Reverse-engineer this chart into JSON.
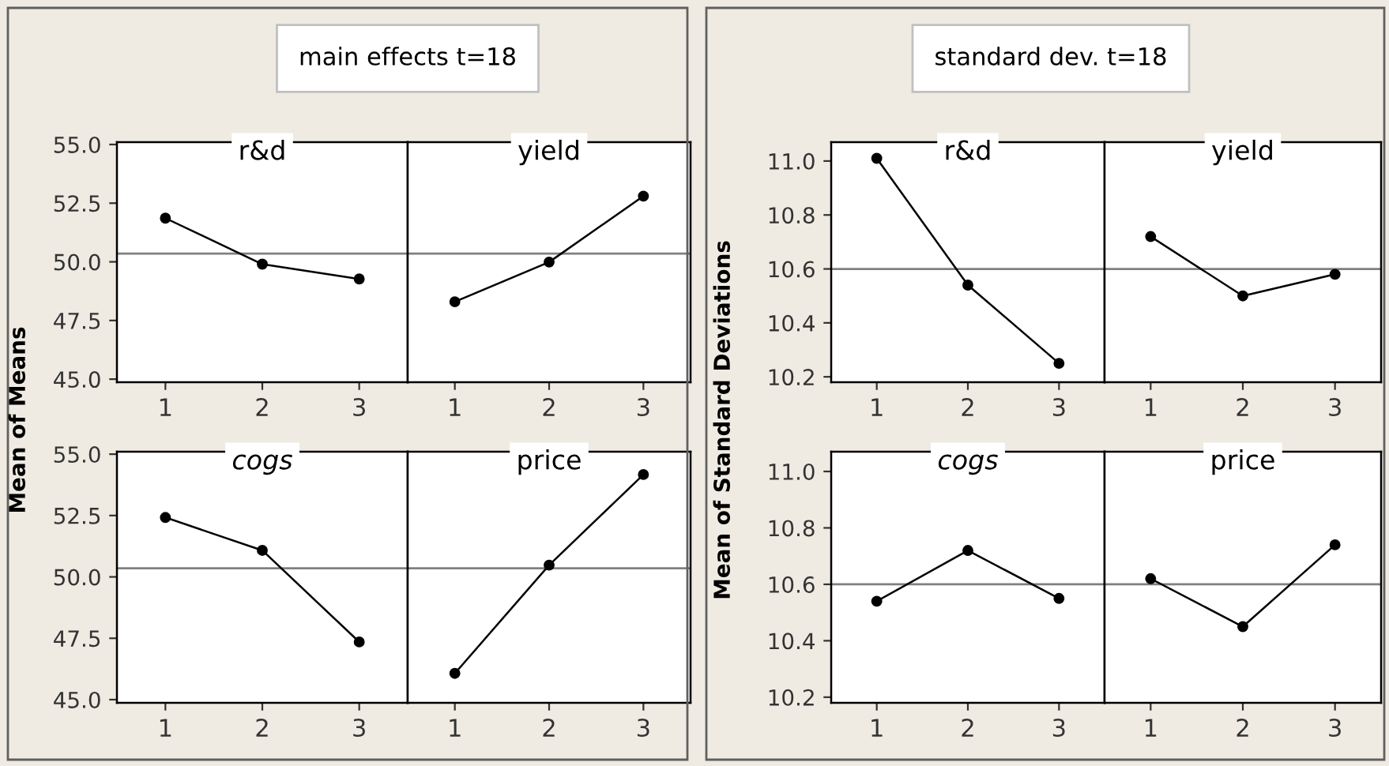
{
  "chart_data": [
    {
      "type": "line",
      "title": "r&d",
      "annotations": [
        "main effects t=18"
      ],
      "ylabel": "Mean of Means",
      "categories": [
        "1",
        "2",
        "3"
      ],
      "values": [
        51.86,
        49.9,
        49.27
      ],
      "color": "#000000",
      "marker": "circle",
      "ylim": [
        44.87,
        55.1
      ],
      "yticks": [
        {
          "value": 45,
          "label": "45.0"
        },
        47.5,
        {
          "value": 50,
          "label": "50.0"
        },
        52.5,
        {
          "value": 55,
          "label": "55.0"
        }
      ],
      "ref_lines": [
        {
          "axis": "y",
          "value": 50.35,
          "color": "#808080"
        }
      ]
    },
    {
      "type": "line",
      "title": "yield",
      "categories": [
        "1",
        "2",
        "3"
      ],
      "values": [
        48.3,
        49.99,
        52.8
      ],
      "color": "#000000",
      "marker": "circle",
      "ylim": [
        44.87,
        55.1
      ],
      "tick_labels": "x",
      "ref_lines": [
        {
          "axis": "y",
          "value": 50.35,
          "color": "#808080"
        }
      ]
    },
    {
      "type": "line",
      "title": "cogs",
      "categories": [
        "1",
        "2",
        "3"
      ],
      "values": [
        52.42,
        51.08,
        47.35
      ],
      "color": "#000000",
      "marker": "circle",
      "ylim": [
        44.87,
        55.1
      ],
      "yticks": [
        {
          "value": 45,
          "label": "45.0"
        },
        47.5,
        {
          "value": 50,
          "label": "50.0"
        },
        52.5,
        {
          "value": 55,
          "label": "55.0"
        }
      ],
      "ref_lines": [
        {
          "axis": "y",
          "value": 50.35,
          "color": "#808080"
        }
      ]
    },
    {
      "type": "line",
      "title": "price",
      "categories": [
        "1",
        "2",
        "3"
      ],
      "values": [
        46.07,
        50.48,
        54.17
      ],
      "color": "#000000",
      "marker": "circle",
      "ylim": [
        44.87,
        55.1
      ],
      "tick_labels": "x",
      "ref_lines": [
        {
          "axis": "y",
          "value": 50.35,
          "color": "#808080"
        }
      ]
    },
    {
      "type": "line",
      "title": "r&d",
      "annotations": [
        "standard dev. t=18"
      ],
      "ylabel": "Mean of Standard Deviations",
      "categories": [
        "1",
        "2",
        "3"
      ],
      "values": [
        11.01,
        10.54,
        10.25
      ],
      "color": "#000000",
      "marker": "circle",
      "ylim": [
        10.18,
        11.07
      ],
      "yticks": [
        10.2,
        10.4,
        10.6,
        10.8,
        {
          "value": 11,
          "label": "11.0"
        }
      ],
      "ref_lines": [
        {
          "axis": "y",
          "value": 10.6,
          "color": "#808080"
        }
      ]
    },
    {
      "type": "line",
      "title": "yield",
      "categories": [
        "1",
        "2",
        "3"
      ],
      "values": [
        10.72,
        10.5,
        10.58
      ],
      "color": "#000000",
      "marker": "circle",
      "ylim": [
        10.18,
        11.07
      ],
      "tick_labels": "x",
      "ref_lines": [
        {
          "axis": "y",
          "value": 10.6,
          "color": "#808080"
        }
      ]
    },
    {
      "type": "line",
      "title": "cogs",
      "categories": [
        "1",
        "2",
        "3"
      ],
      "values": [
        10.54,
        10.72,
        10.55
      ],
      "color": "#000000",
      "marker": "circle",
      "ylim": [
        10.18,
        11.07
      ],
      "yticks": [
        10.2,
        10.4,
        10.6,
        10.8,
        {
          "value": 11,
          "label": "11.0"
        }
      ],
      "ref_lines": [
        {
          "axis": "y",
          "value": 10.6,
          "color": "#808080"
        }
      ]
    },
    {
      "type": "line",
      "title": "price",
      "categories": [
        "1",
        "2",
        "3"
      ],
      "values": [
        10.62,
        10.45,
        10.74
      ],
      "color": "#000000",
      "marker": "circle",
      "ylim": [
        10.18,
        11.07
      ],
      "tick_labels": "x",
      "ref_lines": [
        {
          "axis": "y",
          "value": 10.6,
          "color": "#808080"
        }
      ]
    }
  ]
}
